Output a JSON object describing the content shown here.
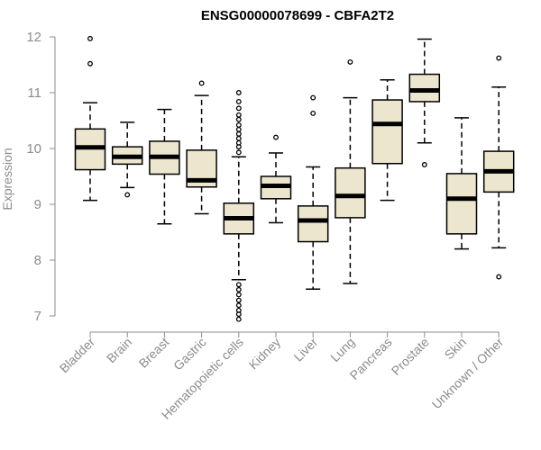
{
  "chart_data": {
    "type": "boxplot",
    "title": "ENSG00000078699 - CBFA2T2",
    "xlabel": "",
    "ylabel": "Expression",
    "ylim": [
      6.9,
      12.1
    ],
    "yticks": [
      7,
      8,
      9,
      10,
      11,
      12
    ],
    "colors": {
      "box_fill": "#ede6cf",
      "box_stroke": "#000000",
      "median": "#000000",
      "axis": "#8c8c8c"
    },
    "categories": [
      "Bladder",
      "Brain",
      "Breast",
      "Gastric",
      "Hematopoietic cells",
      "Kidney",
      "Liver",
      "Lung",
      "Pancreas",
      "Prostate",
      "Skin",
      "Unknown / Other"
    ],
    "series": [
      {
        "name": "Bladder",
        "whisker_low": 9.07,
        "q1": 9.62,
        "median": 10.02,
        "q3": 10.35,
        "whisker_high": 10.82,
        "outliers": [
          11.52,
          11.97
        ]
      },
      {
        "name": "Brain",
        "whisker_low": 9.3,
        "q1": 9.72,
        "median": 9.85,
        "q3": 10.03,
        "whisker_high": 10.47,
        "outliers": [
          9.17
        ]
      },
      {
        "name": "Breast",
        "whisker_low": 8.65,
        "q1": 9.54,
        "median": 9.85,
        "q3": 10.13,
        "whisker_high": 10.7,
        "outliers": []
      },
      {
        "name": "Gastric",
        "whisker_low": 8.83,
        "q1": 9.31,
        "median": 9.43,
        "q3": 9.97,
        "whisker_high": 10.95,
        "outliers": [
          11.17
        ]
      },
      {
        "name": "Hematopoietic cells",
        "whisker_low": 7.65,
        "q1": 8.47,
        "median": 8.75,
        "q3": 9.02,
        "whisker_high": 9.85,
        "outliers": [
          11.0,
          10.84,
          10.72,
          10.6,
          10.52,
          10.42,
          10.34,
          10.26,
          10.18,
          10.1,
          10.03,
          9.93,
          7.56,
          7.47,
          7.38,
          7.28,
          7.19,
          7.1,
          7.03,
          6.94
        ]
      },
      {
        "name": "Kidney",
        "whisker_low": 8.67,
        "q1": 9.1,
        "median": 9.33,
        "q3": 9.5,
        "whisker_high": 9.92,
        "outliers": [
          10.2
        ]
      },
      {
        "name": "Liver",
        "whisker_low": 7.48,
        "q1": 8.33,
        "median": 8.71,
        "q3": 8.97,
        "whisker_high": 9.67,
        "outliers": [
          10.63,
          10.91
        ]
      },
      {
        "name": "Lung",
        "whisker_low": 7.58,
        "q1": 8.76,
        "median": 9.15,
        "q3": 9.65,
        "whisker_high": 10.91,
        "outliers": [
          11.55
        ]
      },
      {
        "name": "Pancreas",
        "whisker_low": 9.07,
        "q1": 9.73,
        "median": 10.44,
        "q3": 10.87,
        "whisker_high": 11.23,
        "outliers": []
      },
      {
        "name": "Prostate",
        "whisker_low": 10.1,
        "q1": 10.84,
        "median": 11.04,
        "q3": 11.33,
        "whisker_high": 11.96,
        "outliers": [
          9.71
        ]
      },
      {
        "name": "Skin",
        "whisker_low": 8.2,
        "q1": 8.47,
        "median": 9.1,
        "q3": 9.55,
        "whisker_high": 10.55,
        "outliers": []
      },
      {
        "name": "Unknown / Other",
        "whisker_low": 8.22,
        "q1": 9.22,
        "median": 9.59,
        "q3": 9.95,
        "whisker_high": 11.1,
        "outliers": [
          11.62,
          7.7
        ]
      }
    ]
  }
}
